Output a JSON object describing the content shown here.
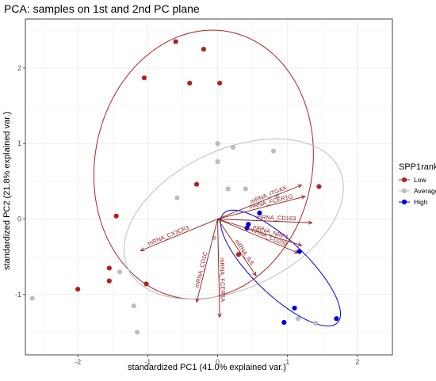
{
  "chart_data": {
    "type": "scatter",
    "title": "PCA: samples on 1st and 2nd PC plane",
    "xlabel": "standardized PC1 (41.0% explained var.)",
    "ylabel": "standardized PC2 (21.8% explained var.)",
    "xlim": [
      -2.75,
      2.5
    ],
    "ylim": [
      -1.8,
      2.65
    ],
    "xticks": [
      -2,
      -1,
      0,
      1,
      2
    ],
    "yticks": [
      -1,
      0,
      1,
      2
    ],
    "grid": true,
    "legend": {
      "title": "SPP1rank",
      "position": "right",
      "entries": [
        "Low",
        "Average",
        "High"
      ]
    },
    "colors": {
      "Low": "#b22222",
      "Average": "#bdbdbd",
      "High": "#0000dd",
      "arrow": "#8b1a1a",
      "grid": "#ebebeb",
      "axis_text": "#4d4d4d"
    },
    "series": [
      {
        "name": "Low",
        "points": [
          [
            -0.6,
            2.35
          ],
          [
            -0.2,
            2.25
          ],
          [
            -1.05,
            1.87
          ],
          [
            -0.4,
            1.8
          ],
          [
            0.03,
            1.8
          ],
          [
            -0.3,
            0.46
          ],
          [
            -1.45,
            0.04
          ],
          [
            1.45,
            0.43
          ],
          [
            0.3,
            -0.47
          ],
          [
            -1.55,
            -0.65
          ],
          [
            -1.55,
            -0.82
          ],
          [
            -1.02,
            -0.86
          ],
          [
            -2.0,
            -0.93
          ]
        ]
      },
      {
        "name": "Average",
        "points": [
          [
            0.0,
            1.0
          ],
          [
            0.22,
            0.95
          ],
          [
            0.8,
            0.9
          ],
          [
            0.0,
            0.76
          ],
          [
            -0.58,
            0.28
          ],
          [
            0.15,
            0.4
          ],
          [
            0.4,
            0.4
          ],
          [
            0.85,
            0.3
          ],
          [
            -0.05,
            -0.25
          ],
          [
            -1.4,
            -0.7
          ],
          [
            -1.2,
            -1.15
          ],
          [
            -1.15,
            -1.5
          ],
          [
            -2.65,
            -1.05
          ],
          [
            1.4,
            -1.38
          ],
          [
            1.15,
            -1.32
          ]
        ]
      },
      {
        "name": "High",
        "points": [
          [
            0.6,
            0.08
          ],
          [
            0.44,
            -0.07
          ],
          [
            0.42,
            -0.12
          ],
          [
            1.17,
            -0.43
          ],
          [
            1.1,
            -1.18
          ],
          [
            0.95,
            -1.37
          ],
          [
            1.7,
            -1.32
          ]
        ]
      }
    ],
    "ellipses": [
      {
        "group": "Low",
        "center": [
          -0.2,
          0.72
        ],
        "rx": 1.55,
        "ry": 1.8,
        "angle_deg": -16
      },
      {
        "group": "Average",
        "center": [
          0.23,
          0.0
        ],
        "rx": 1.65,
        "ry": 0.93,
        "angle_deg": 22
      },
      {
        "group": "High",
        "center": [
          0.9,
          -0.65
        ],
        "rx": 1.09,
        "ry": 0.37,
        "angle_deg": -41
      }
    ],
    "loadings": [
      {
        "label": "mRNA_ITGAX",
        "end": [
          1.2,
          0.45
        ]
      },
      {
        "label": "mRNA_FCER1G",
        "end": [
          1.25,
          0.3
        ]
      },
      {
        "label": "mRNA_CD163",
        "end": [
          1.35,
          -0.05
        ]
      },
      {
        "label": "mRNA_NRP1",
        "end": [
          1.2,
          -0.35
        ]
      },
      {
        "label": "mRNA_CD209",
        "end": [
          1.15,
          -0.45
        ]
      },
      {
        "label": "mRNA_IL6",
        "end": [
          0.55,
          -0.75
        ]
      },
      {
        "label": "mRNA_CX3CR1",
        "end": [
          -1.1,
          -0.42
        ]
      },
      {
        "label": "mRNA_FCER1A",
        "end": [
          0.03,
          -1.3
        ]
      },
      {
        "label": "mRNA_CD1C",
        "end": [
          -0.3,
          -1.1
        ]
      }
    ]
  }
}
